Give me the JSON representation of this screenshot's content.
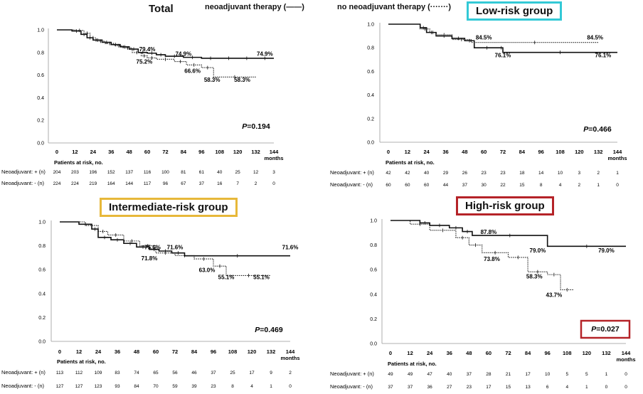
{
  "legend": {
    "with_therapy": "neoadjuvant therapy (——)",
    "without_therapy": "no  neoadjuvant therapy (·······)"
  },
  "colors": {
    "low_risk_box": "#33c9d6",
    "intermediate_risk_box": "#e7b83a",
    "high_risk_box": "#b52328",
    "p_box": "#b52328"
  },
  "chart_data": [
    {
      "id": "total",
      "type": "line",
      "title": "Total",
      "x_ticks": [
        "0",
        "12",
        "24",
        "36",
        "48",
        "60",
        "72",
        "84",
        "96",
        "108",
        "120",
        "132",
        "144"
      ],
      "xlabel": "months",
      "y_ticks": [
        "0.0",
        "0.2",
        "0.4",
        "0.6",
        "0.8",
        "1.0"
      ],
      "xlim": [
        0,
        144
      ],
      "ylim": [
        0,
        1.0
      ],
      "p_value": "=0.194",
      "p_symbol": "P",
      "risk_title": "Patients at risk, no.",
      "risk_rows": [
        {
          "label": "Neoadjuvant: + (n)",
          "values": [
            "204",
            "203",
            "196",
            "152",
            "137",
            "116",
            "100",
            "81",
            "61",
            "40",
            "25",
            "12",
            "3"
          ]
        },
        {
          "label": "Neoadjuvant: - (n)",
          "values": [
            "224",
            "224",
            "219",
            "164",
            "144",
            "117",
            "96",
            "67",
            "37",
            "16",
            "7",
            "2",
            "0"
          ]
        }
      ],
      "annotations": [
        "79.4%",
        "75.2%",
        "74.9%",
        "74.9%",
        "66.6%",
        "58.3%",
        "58.3%"
      ],
      "series": [
        {
          "name": "neoadjuvant therapy",
          "style": "solid",
          "x": [
            0,
            10,
            16,
            20,
            24,
            30,
            36,
            42,
            48,
            54,
            60,
            66,
            72,
            84,
            96,
            108,
            120,
            132,
            144
          ],
          "y": [
            1,
            0.99,
            0.96,
            0.93,
            0.91,
            0.89,
            0.87,
            0.85,
            0.83,
            0.8,
            0.794,
            0.78,
            0.767,
            0.757,
            0.749,
            0.749,
            0.749,
            0.749,
            0.749
          ]
        },
        {
          "name": "no neoadjuvant therapy",
          "style": "dotted",
          "x": [
            0,
            12,
            18,
            22,
            26,
            32,
            38,
            44,
            50,
            56,
            60,
            66,
            78,
            86,
            96,
            104,
            132
          ],
          "y": [
            1,
            0.995,
            0.97,
            0.93,
            0.9,
            0.88,
            0.86,
            0.84,
            0.8,
            0.77,
            0.752,
            0.74,
            0.72,
            0.69,
            0.666,
            0.583,
            0.583
          ]
        }
      ]
    },
    {
      "id": "low",
      "type": "line",
      "title": "Low-risk group",
      "x_ticks": [
        "0",
        "12",
        "24",
        "36",
        "48",
        "60",
        "72",
        "84",
        "96",
        "108",
        "120",
        "132",
        "144"
      ],
      "xlabel": "months",
      "y_ticks": [
        "0.0",
        "0.2",
        "0.4",
        "0.6",
        "0.8",
        "1.0"
      ],
      "xlim": [
        0,
        144
      ],
      "ylim": [
        0,
        1.0
      ],
      "p_value": "=0.466",
      "p_symbol": "P",
      "risk_title": "Patients at risk, no.",
      "risk_rows": [
        {
          "label": "Neoadjuvant: + (n)",
          "values": [
            "42",
            "42",
            "40",
            "29",
            "26",
            "23",
            "23",
            "18",
            "14",
            "10",
            "3",
            "2",
            "1"
          ]
        },
        {
          "label": "Neoadjuvant: - (n)",
          "values": [
            "60",
            "60",
            "60",
            "44",
            "37",
            "30",
            "22",
            "15",
            "8",
            "4",
            "2",
            "1",
            "0"
          ]
        }
      ],
      "annotations": [
        "84.5%",
        "84.5%",
        "76.1%",
        "76.1%"
      ],
      "series": [
        {
          "name": "neoadjuvant therapy",
          "style": "solid",
          "x": [
            0,
            20,
            24,
            30,
            40,
            48,
            54,
            70,
            72,
            144
          ],
          "y": [
            1,
            0.97,
            0.93,
            0.9,
            0.88,
            0.86,
            0.8,
            0.8,
            0.761,
            0.761
          ]
        },
        {
          "name": "no neoadjuvant therapy",
          "style": "dotted",
          "x": [
            0,
            20,
            26,
            30,
            40,
            52,
            132
          ],
          "y": [
            1,
            0.96,
            0.93,
            0.91,
            0.87,
            0.845,
            0.845
          ]
        }
      ]
    },
    {
      "id": "intermediate",
      "type": "line",
      "title": "Intermediate-risk group",
      "x_ticks": [
        "0",
        "12",
        "24",
        "36",
        "48",
        "60",
        "72",
        "84",
        "96",
        "108",
        "120",
        "132",
        "144"
      ],
      "xlabel": "months",
      "y_ticks": [
        "0.0",
        "0.2",
        "0.4",
        "0.6",
        "0.8",
        "1.0"
      ],
      "xlim": [
        0,
        144
      ],
      "ylim": [
        0,
        1.0
      ],
      "p_value": "=0.469",
      "p_symbol": "P",
      "risk_title": "Patients at risk, no.",
      "risk_rows": [
        {
          "label": "Neoadjuvant: + (n)",
          "values": [
            "113",
            "112",
            "109",
            "83",
            "74",
            "65",
            "56",
            "46",
            "37",
            "25",
            "17",
            "9",
            "2"
          ]
        },
        {
          "label": "Neoadjuvant: - (n)",
          "values": [
            "127",
            "127",
            "123",
            "93",
            "84",
            "70",
            "59",
            "39",
            "23",
            "8",
            "4",
            "1",
            "0"
          ]
        }
      ],
      "annotations": [
        "75.6%",
        "71.6%",
        "71.6%",
        "71.8%",
        "63.0%",
        "55.1%",
        "55.1%"
      ],
      "series": [
        {
          "name": "neoadjuvant therapy",
          "style": "solid",
          "x": [
            0,
            12,
            20,
            24,
            32,
            40,
            48,
            56,
            62,
            70,
            78,
            144
          ],
          "y": [
            1,
            0.98,
            0.94,
            0.87,
            0.85,
            0.82,
            0.79,
            0.77,
            0.756,
            0.74,
            0.716,
            0.716
          ]
        },
        {
          "name": "no neoadjuvant therapy",
          "style": "dotted",
          "x": [
            0,
            16,
            24,
            30,
            40,
            50,
            60,
            72,
            84,
            96,
            104,
            132
          ],
          "y": [
            1,
            0.97,
            0.92,
            0.89,
            0.84,
            0.8,
            0.74,
            0.718,
            0.69,
            0.63,
            0.551,
            0.551
          ]
        }
      ]
    },
    {
      "id": "high",
      "type": "line",
      "title": "High-risk group",
      "x_ticks": [
        "0",
        "12",
        "24",
        "36",
        "48",
        "60",
        "72",
        "84",
        "96",
        "108",
        "120",
        "132",
        "144"
      ],
      "xlabel": "months",
      "y_ticks": [
        "0.0",
        "0.2",
        "0.4",
        "0.6",
        "0.8",
        "1.0"
      ],
      "xlim": [
        0,
        144
      ],
      "ylim": [
        0,
        1.0
      ],
      "p_value": "=0.027",
      "p_symbol": "P",
      "risk_title": "Patients at risk, no.",
      "risk_rows": [
        {
          "label": "Neoadjuvant: + (n)",
          "values": [
            "49",
            "49",
            "47",
            "40",
            "37",
            "28",
            "21",
            "17",
            "10",
            "5",
            "5",
            "1",
            "0"
          ]
        },
        {
          "label": "Neoadjuvant: - (n)",
          "values": [
            "37",
            "37",
            "36",
            "27",
            "23",
            "17",
            "15",
            "13",
            "6",
            "4",
            "1",
            "0",
            "0"
          ]
        }
      ],
      "annotations": [
        "87.8%",
        "79.0%",
        "79.0%",
        "73.8%",
        "58.3%",
        "43.7%"
      ],
      "series": [
        {
          "name": "neoadjuvant therapy",
          "style": "solid",
          "x": [
            0,
            18,
            24,
            36,
            44,
            50,
            96,
            144
          ],
          "y": [
            1,
            0.98,
            0.96,
            0.94,
            0.91,
            0.878,
            0.79,
            0.79
          ]
        },
        {
          "name": "no neoadjuvant therapy",
          "style": "dotted",
          "x": [
            0,
            12,
            24,
            40,
            48,
            56,
            72,
            84,
            96,
            104,
            112
          ],
          "y": [
            1,
            0.97,
            0.92,
            0.86,
            0.8,
            0.738,
            0.7,
            0.583,
            0.56,
            0.437,
            0.437
          ]
        }
      ]
    }
  ]
}
